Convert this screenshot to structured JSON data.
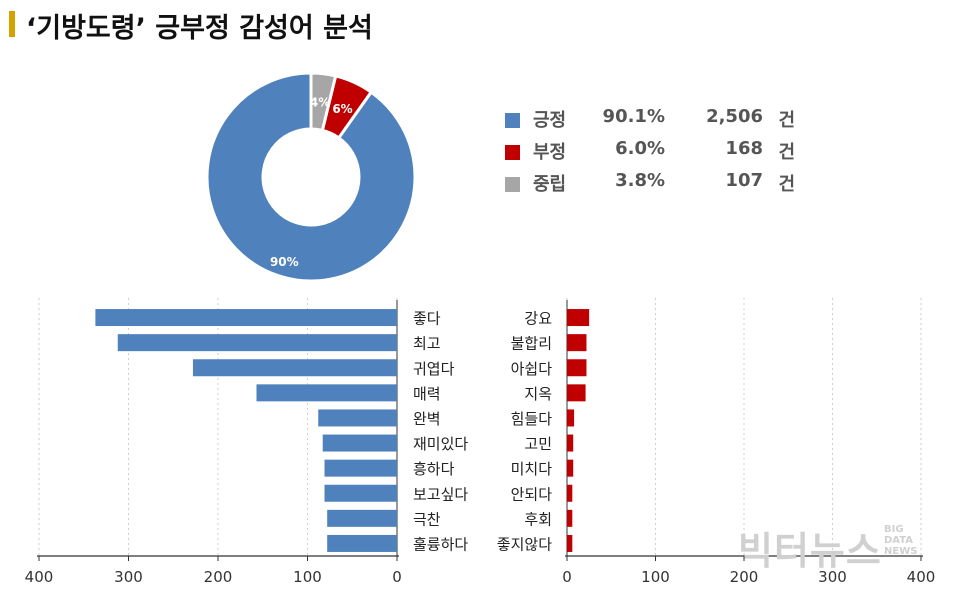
{
  "header": {
    "title": "‘기방도령’ 긍부정 감성어 분석"
  },
  "colors": {
    "positive": "#4f81bd",
    "negative": "#c00000",
    "neutral": "#a6a6a6",
    "accent": "#d4a300"
  },
  "chart_data": [
    {
      "type": "pie",
      "slices": [
        {
          "label": "긍정",
          "percent": 90.1,
          "count": "2,506",
          "unit": "건",
          "pie_label": "90%"
        },
        {
          "label": "부정",
          "percent": 6.0,
          "count": "168",
          "unit": "건",
          "pie_label": "6%"
        },
        {
          "label": "중립",
          "percent": 3.8,
          "count": "107",
          "unit": "건",
          "pie_label": "4%"
        }
      ],
      "legend_display": [
        {
          "label": "긍정",
          "pct": "90.1%",
          "count": "2,506",
          "unit": "건"
        },
        {
          "label": "부정",
          "pct": "6.0%",
          "count": "168",
          "unit": "건"
        },
        {
          "label": "중립",
          "pct": "3.8%",
          "count": "107",
          "unit": "건"
        }
      ],
      "legend_position": "right"
    },
    {
      "type": "bar",
      "orientation": "horizontal",
      "direction": "right-to-left",
      "categories": [
        "좋다",
        "최고",
        "귀엽다",
        "매력",
        "완벽",
        "재미있다",
        "흥하다",
        "보고싶다",
        "극찬",
        "훌륭하다"
      ],
      "values": [
        337,
        312,
        228,
        157,
        88,
        83,
        81,
        81,
        78,
        78
      ],
      "xlim": [
        0,
        400
      ],
      "ticks": [
        400,
        300,
        200,
        100,
        0
      ],
      "grid": true
    },
    {
      "type": "bar",
      "orientation": "horizontal",
      "direction": "left-to-right",
      "categories": [
        "강요",
        "불합리",
        "아쉽다",
        "지옥",
        "힘들다",
        "고민",
        "미치다",
        "안되다",
        "후회",
        "좋지않다"
      ],
      "values": [
        25,
        22,
        22,
        21,
        8,
        7,
        7,
        6,
        6,
        6
      ],
      "xlim": [
        0,
        400
      ],
      "ticks": [
        0,
        100,
        200,
        300,
        400
      ],
      "grid": true
    }
  ],
  "watermark": {
    "text": "빅터뉴스",
    "sub": [
      "BIG",
      "DATA",
      "NEWS"
    ]
  }
}
